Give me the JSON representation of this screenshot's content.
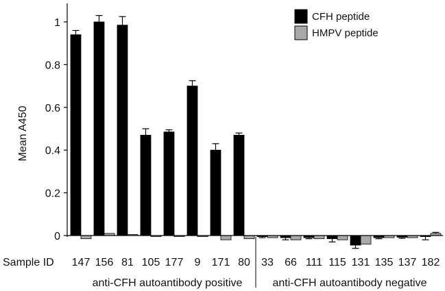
{
  "chart_data": {
    "type": "bar",
    "ylabel": "Mean A450",
    "xlabel": "Sample ID",
    "ylim": [
      -0.06,
      1.08
    ],
    "yticks": [
      0,
      0.2,
      0.4,
      0.6,
      0.8,
      1
    ],
    "ytick_labels": [
      "0",
      "0.2",
      "0.4",
      "0.6",
      "0.8",
      "1"
    ],
    "categories": [
      "147",
      "156",
      "81",
      "105",
      "177",
      "9",
      "171",
      "80",
      "33",
      "66",
      "111",
      "115",
      "131",
      "135",
      "137",
      "182"
    ],
    "series": [
      {
        "name": "CFH peptide",
        "color": "#000000",
        "values": [
          0.94,
          1.0,
          0.985,
          0.47,
          0.485,
          0.7,
          0.4,
          0.47,
          -0.005,
          -0.01,
          -0.01,
          -0.015,
          -0.045,
          -0.01,
          -0.008,
          -0.005
        ],
        "errors": [
          0.02,
          0.03,
          0.04,
          0.03,
          0.01,
          0.025,
          0.03,
          0.01,
          0.005,
          0.01,
          0.005,
          0.015,
          0.015,
          0.005,
          0.005,
          0.015
        ]
      },
      {
        "name": "HMPV peptide",
        "color": "#a8a8a8",
        "values": [
          -0.015,
          0.01,
          0.005,
          -0.005,
          -0.005,
          -0.005,
          -0.02,
          -0.015,
          -0.01,
          -0.02,
          -0.015,
          -0.02,
          -0.04,
          -0.01,
          -0.01,
          0.01
        ],
        "errors": [
          0,
          0,
          0,
          0,
          0,
          0,
          0,
          0,
          0,
          0,
          0,
          0,
          0,
          0,
          0,
          0.005
        ]
      }
    ],
    "groups": [
      {
        "label": "anti-CFH autoantibody positive",
        "start": 0,
        "end": 7
      },
      {
        "label": "anti-CFH autoantibody negative",
        "start": 8,
        "end": 15
      }
    ],
    "legend_position": "top-right",
    "grid": false
  }
}
